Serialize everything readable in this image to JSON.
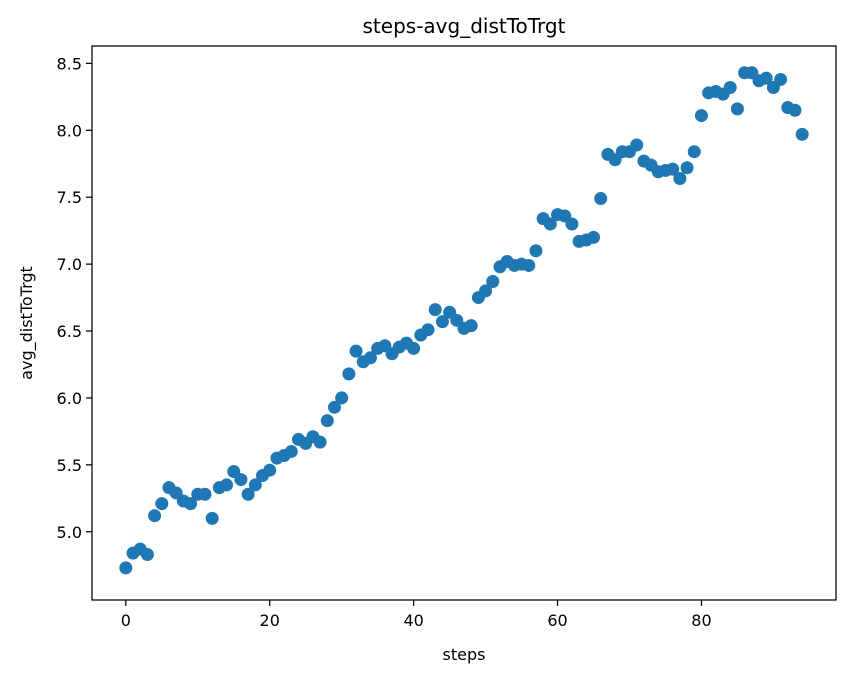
{
  "chart_data": {
    "type": "scatter",
    "title": "steps-avg_distToTrgt",
    "xlabel": "steps",
    "ylabel": "avg_distToTrgt",
    "xlim": [
      -4.7,
      98.7
    ],
    "ylim": [
      4.49,
      8.63
    ],
    "xticks": [
      0,
      20,
      40,
      60,
      80
    ],
    "xtick_labels": [
      "0",
      "20",
      "40",
      "60",
      "80"
    ],
    "yticks": [
      5.0,
      5.5,
      6.0,
      6.5,
      7.0,
      7.5,
      8.0,
      8.5
    ],
    "ytick_labels": [
      "5.0",
      "5.5",
      "6.0",
      "6.5",
      "7.0",
      "7.5",
      "8.0",
      "8.5"
    ],
    "grid": false,
    "marker_color": "#1f77b4",
    "series": [
      {
        "x": [
          0,
          1,
          2,
          3,
          4,
          5,
          6,
          7,
          8,
          9,
          10,
          11,
          12,
          13,
          14,
          15,
          16,
          17,
          18,
          19,
          20,
          21,
          22,
          23,
          24,
          25,
          26,
          27,
          28,
          29,
          30,
          31,
          32,
          33,
          34,
          35,
          36,
          37,
          38,
          39,
          40,
          41,
          42,
          43,
          44,
          45,
          46,
          47,
          48,
          49,
          50,
          51,
          52,
          53,
          54,
          55,
          56,
          57,
          58,
          59,
          60,
          61,
          62,
          63,
          64,
          65,
          66,
          67,
          68,
          69,
          70,
          71,
          72,
          73,
          74,
          75,
          76,
          77,
          78,
          79,
          80,
          81,
          82,
          83,
          84,
          85,
          86,
          87,
          88,
          89,
          90,
          91,
          92,
          93,
          94
        ],
        "y": [
          4.73,
          4.84,
          4.87,
          4.83,
          5.12,
          5.21,
          5.33,
          5.29,
          5.23,
          5.21,
          5.28,
          5.28,
          5.1,
          5.33,
          5.35,
          5.45,
          5.39,
          5.28,
          5.35,
          5.42,
          5.46,
          5.55,
          5.57,
          5.6,
          5.69,
          5.66,
          5.71,
          5.67,
          5.83,
          5.93,
          6.0,
          6.18,
          6.35,
          6.27,
          6.3,
          6.37,
          6.39,
          6.33,
          6.38,
          6.41,
          6.37,
          6.47,
          6.51,
          6.66,
          6.57,
          6.64,
          6.58,
          6.52,
          6.54,
          6.75,
          6.8,
          6.87,
          6.98,
          7.02,
          6.99,
          7.0,
          6.99,
          7.1,
          7.34,
          7.3,
          7.37,
          7.36,
          7.3,
          7.17,
          7.18,
          7.2,
          7.49,
          7.82,
          7.78,
          7.84,
          7.84,
          7.89,
          7.77,
          7.74,
          7.69,
          7.7,
          7.71,
          7.64,
          7.72,
          7.84,
          8.11,
          8.28,
          8.29,
          8.27,
          8.32,
          8.16,
          8.43,
          8.43,
          8.37,
          8.39,
          8.32,
          8.38,
          8.17,
          8.15,
          7.97
        ]
      }
    ]
  }
}
